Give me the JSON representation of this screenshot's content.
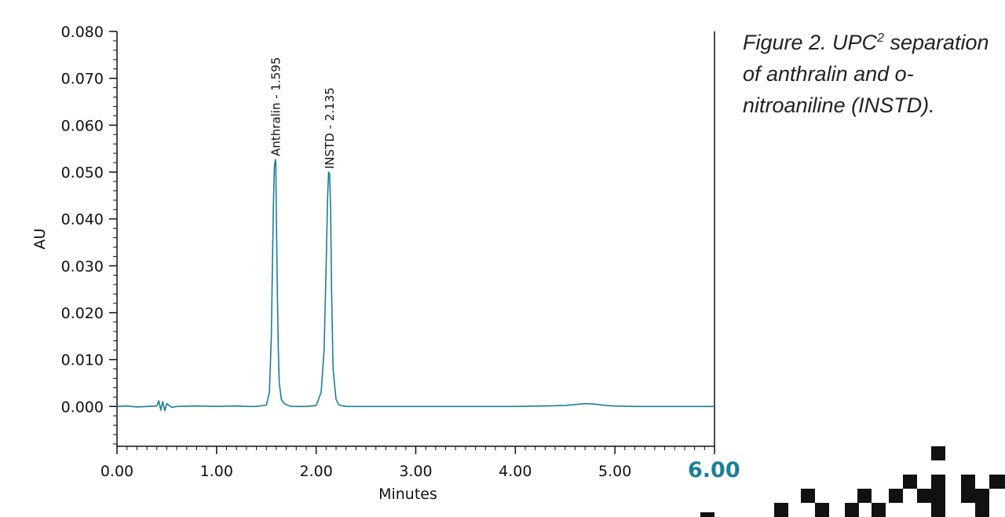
{
  "caption": {
    "prefix": "Figure 2. UPC",
    "superscript": "2",
    "rest": " separation of anthralin and o-nitroaniline (INSTD)."
  },
  "chart_data": {
    "type": "line",
    "xlabel": "Minutes",
    "ylabel": "AU",
    "xlim": [
      0.0,
      6.0
    ],
    "ylim": [
      -0.0085,
      0.08
    ],
    "x_ticks": [
      "0.00",
      "1.00",
      "2.00",
      "3.00",
      "4.00",
      "5.00"
    ],
    "x_last_tick": "6.00",
    "y_ticks": [
      "0.000",
      "0.010",
      "0.020",
      "0.030",
      "0.040",
      "0.050",
      "0.060",
      "0.070",
      "0.080"
    ],
    "y_tick_values": [
      0.0,
      0.01,
      0.02,
      0.03,
      0.04,
      0.05,
      0.06,
      0.07,
      0.08
    ],
    "grid": false,
    "line_color": "#1a7f97",
    "peaks": [
      {
        "label": "Anthralin - 1.595",
        "x": 1.595,
        "y": 0.0527
      },
      {
        "label": "INSTD - 2.135",
        "x": 2.135,
        "y": 0.05
      }
    ],
    "series": [
      {
        "x": [
          0.0,
          0.1,
          0.2,
          0.3,
          0.4,
          0.42,
          0.44,
          0.46,
          0.48,
          0.5,
          0.55,
          0.6,
          0.8,
          1.0,
          1.2,
          1.3,
          1.4,
          1.5,
          1.53,
          1.55,
          1.57,
          1.58,
          1.59,
          1.595,
          1.6,
          1.61,
          1.62,
          1.63,
          1.65,
          1.68,
          1.72,
          1.76,
          1.8,
          1.9,
          2.0,
          2.05,
          2.08,
          2.1,
          2.115,
          2.125,
          2.135,
          2.145,
          2.155,
          2.17,
          2.2,
          2.23,
          2.3,
          2.5,
          3.0,
          3.5,
          4.0,
          4.3,
          4.5,
          4.6,
          4.7,
          4.8,
          4.9,
          5.0,
          5.2,
          5.5,
          6.0
        ],
        "y": [
          0.0,
          0.0001,
          -0.0001,
          0.0,
          0.0001,
          0.0012,
          -0.0008,
          0.001,
          -0.0009,
          0.0006,
          -0.0002,
          0.0,
          0.0001,
          0.0,
          0.0001,
          0.0,
          0.0,
          0.0003,
          0.003,
          0.015,
          0.042,
          0.051,
          0.0527,
          0.052,
          0.042,
          0.025,
          0.012,
          0.005,
          0.0015,
          0.0006,
          0.0002,
          0.0,
          0.0,
          0.0,
          0.0002,
          0.003,
          0.012,
          0.03,
          0.045,
          0.05,
          0.0495,
          0.042,
          0.025,
          0.008,
          0.0015,
          0.0003,
          0.0,
          0.0,
          0.0,
          0.0,
          0.0,
          0.0001,
          0.0002,
          0.0004,
          0.0006,
          0.0005,
          0.0002,
          0.0001,
          0.0,
          0.0,
          0.0
        ]
      }
    ]
  }
}
